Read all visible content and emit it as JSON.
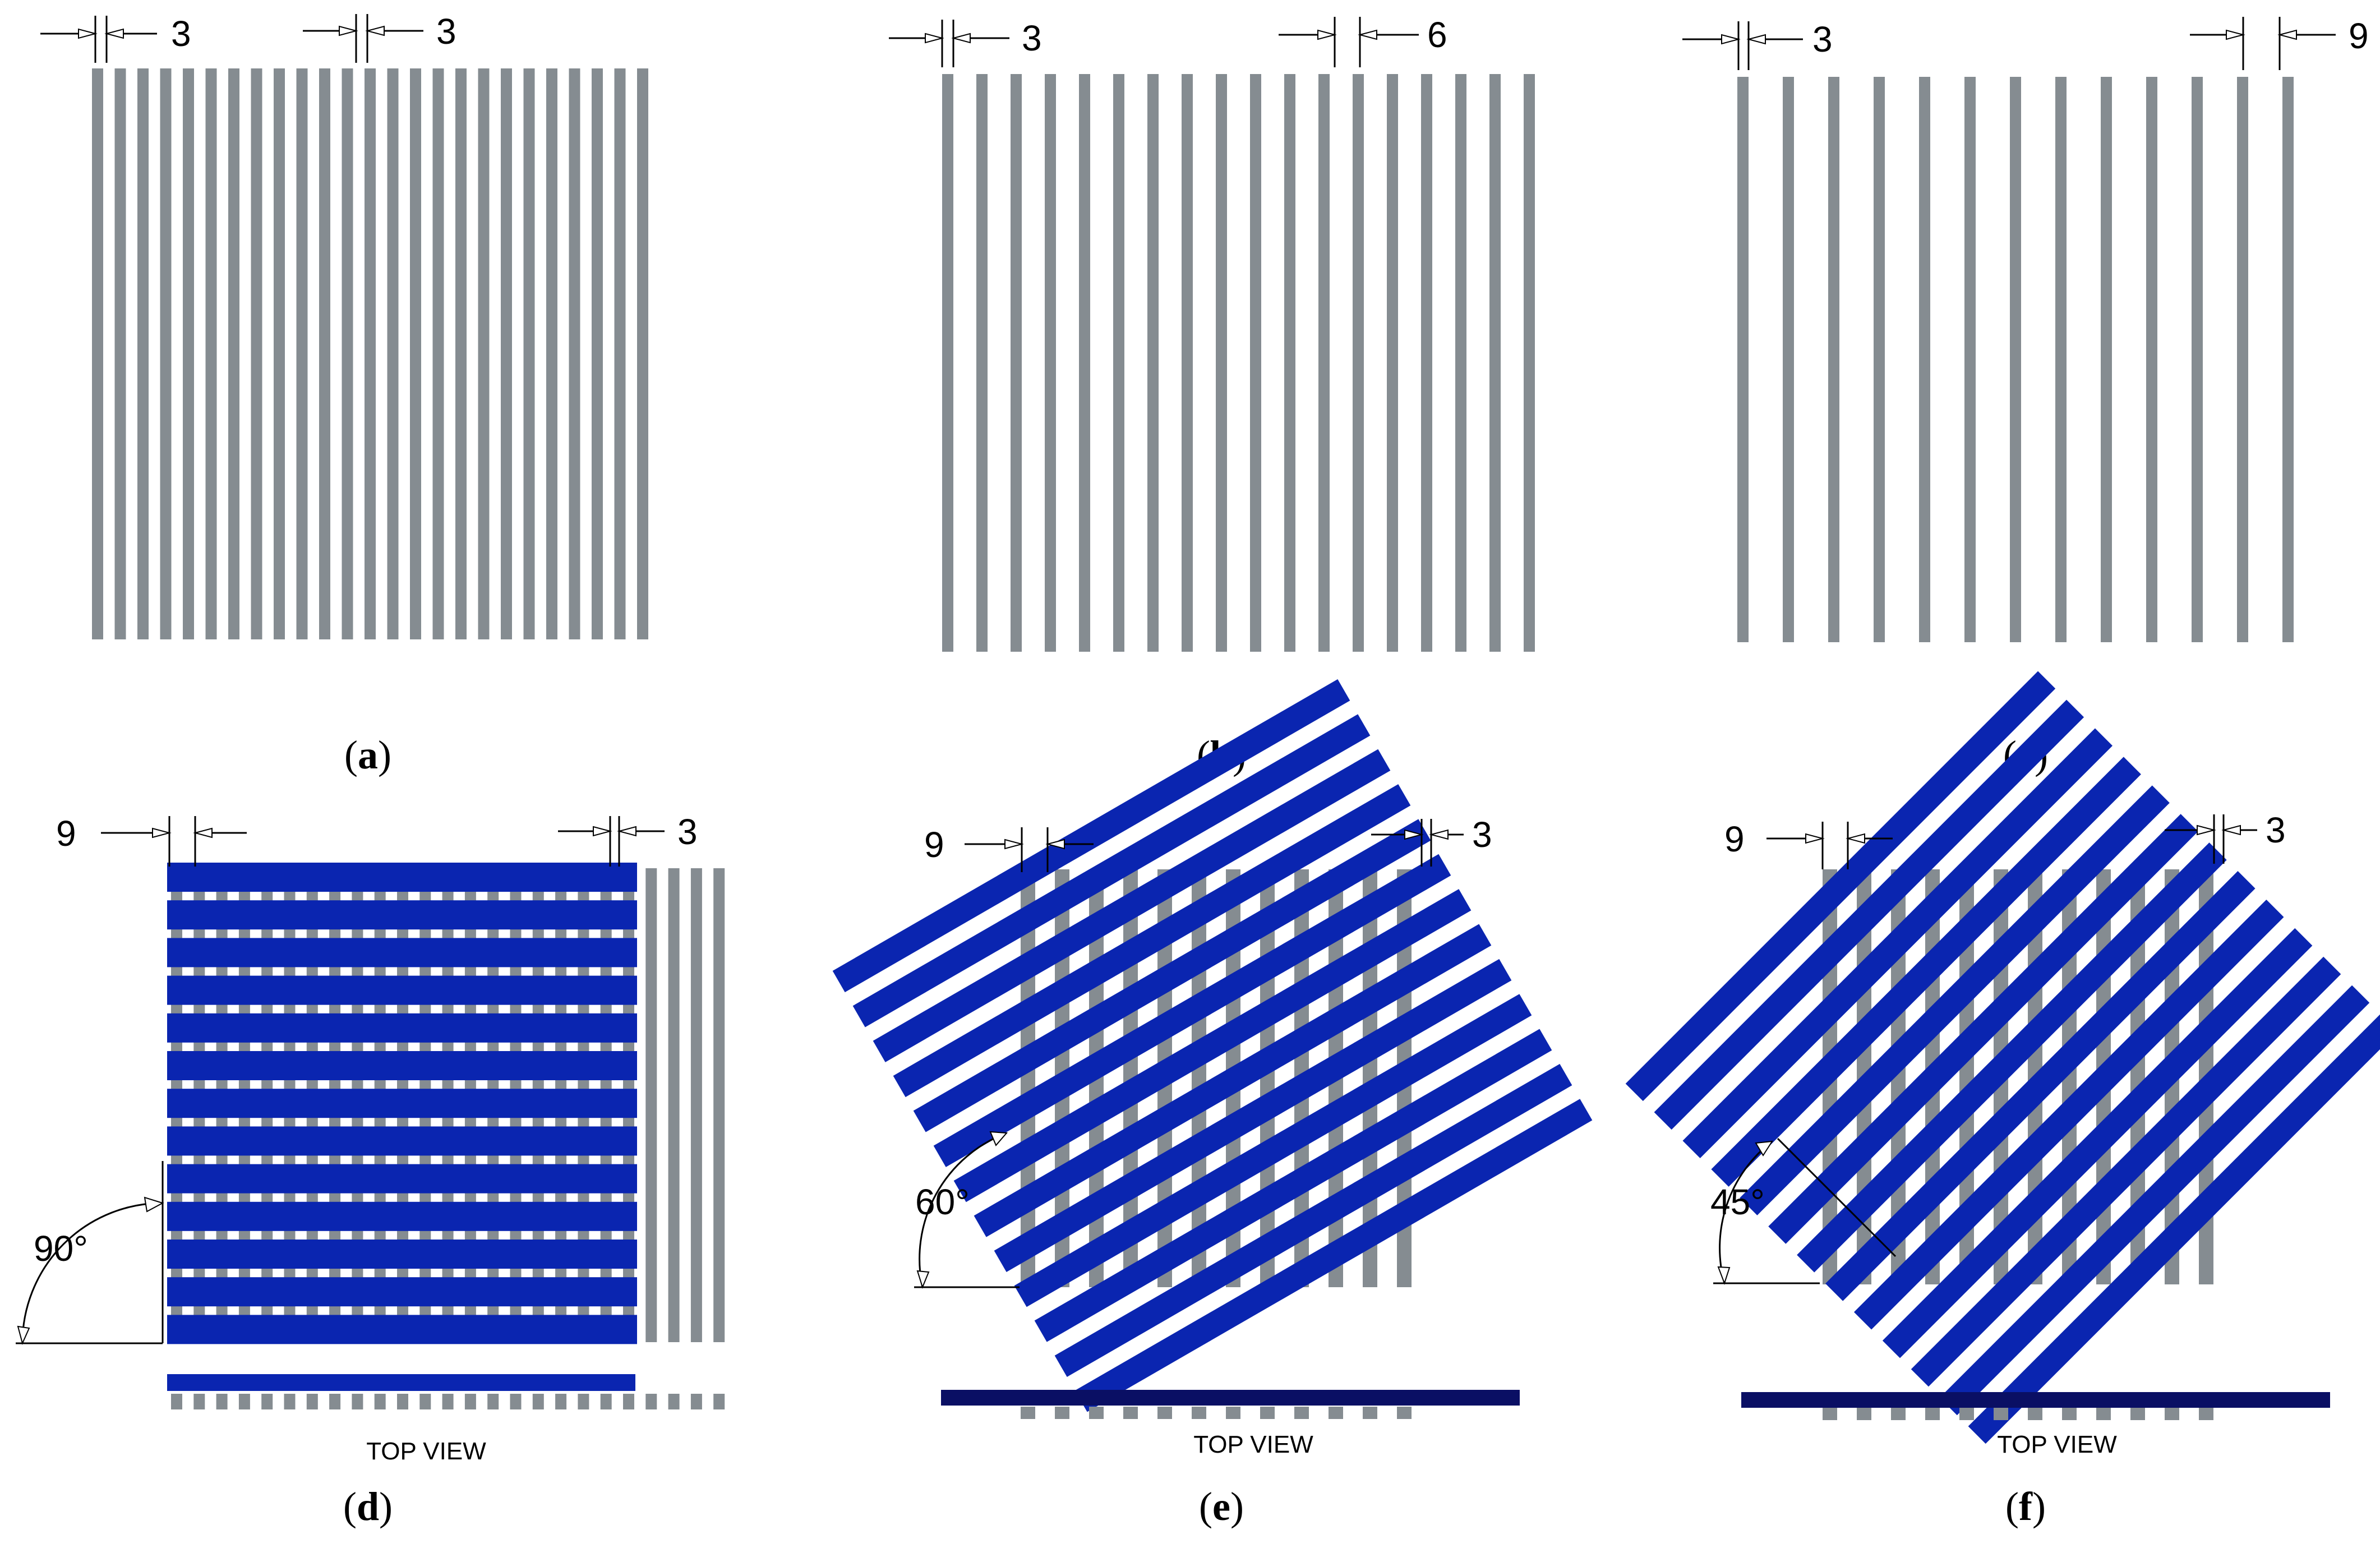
{
  "colors": {
    "gray_strip": "#858c91",
    "blue_strip": "#0a25b0",
    "navy_bar": "#0a0f64",
    "background": "#ffffff"
  },
  "panels": [
    {
      "id": "a",
      "label": "a",
      "dims": [
        "3",
        "3"
      ]
    },
    {
      "id": "b",
      "label": "b",
      "dims": [
        "3",
        "6"
      ]
    },
    {
      "id": "c",
      "label": "c",
      "dims": [
        "3",
        "9"
      ]
    },
    {
      "id": "d",
      "label": "d",
      "dims": [
        "9",
        "3"
      ],
      "angle": "90°",
      "view": "TOP VIEW"
    },
    {
      "id": "e",
      "label": "e",
      "dims": [
        "9",
        "3"
      ],
      "angle": "60°",
      "view": "TOP VIEW"
    },
    {
      "id": "f",
      "label": "f",
      "dims": [
        "9",
        "3"
      ],
      "angle": "45°",
      "view": "TOP VIEW"
    }
  ]
}
